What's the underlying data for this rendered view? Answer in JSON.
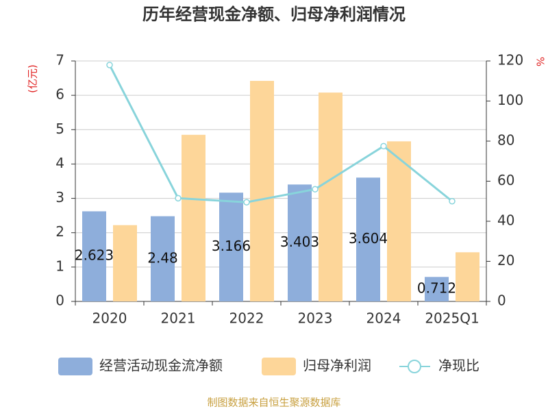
{
  "chart_data": {
    "type": "bar_line",
    "title": "历年经营现金净额、归母净利润情况",
    "y_label": "(亿元)",
    "y2_label": "%",
    "categories": [
      "2020",
      "2021",
      "2022",
      "2023",
      "2024",
      "2025Q1"
    ],
    "series": [
      {
        "name": "经营活动现金流净额",
        "type": "bar",
        "color": "#8eaedb",
        "values": [
          2.623,
          2.48,
          3.166,
          3.403,
          3.604,
          0.712
        ],
        "show_labels": true
      },
      {
        "name": "归母净利润",
        "type": "bar",
        "color": "#fdd699",
        "values": [
          2.22,
          4.85,
          6.42,
          6.08,
          4.66,
          1.43
        ]
      },
      {
        "name": "净现比",
        "type": "line",
        "axis": "y2",
        "color": "#88d4db",
        "values": [
          118,
          51.5,
          49.5,
          56,
          77.5,
          50
        ]
      }
    ],
    "ylim": [
      0,
      7
    ],
    "yticks": [
      0,
      1,
      2,
      3,
      4,
      5,
      6,
      7
    ],
    "y2lim": [
      0,
      120
    ],
    "y2ticks": [
      0,
      20,
      40,
      60,
      80,
      100,
      120
    ],
    "grid": true,
    "footer": "制图数据来自恒生聚源数据库"
  }
}
